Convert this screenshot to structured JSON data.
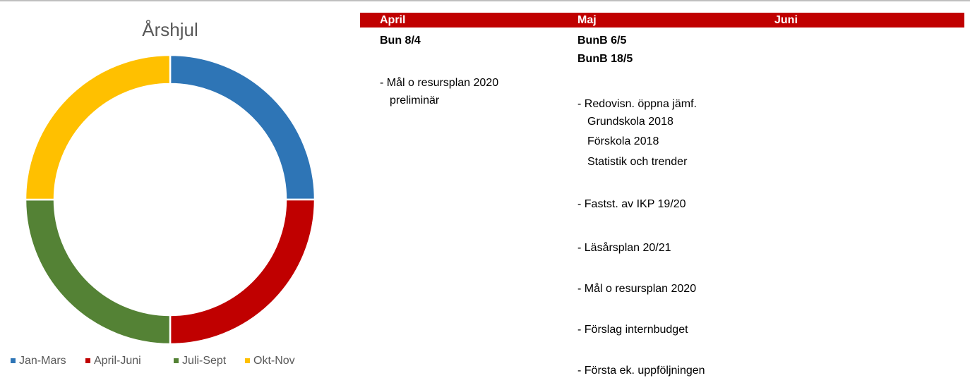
{
  "chart_data": {
    "type": "pie",
    "title": "Årshjul",
    "categories": [
      "Jan-Mars",
      "April-Juni",
      "Juli-Sept",
      "Okt-Nov"
    ],
    "values": [
      25,
      25,
      25,
      25
    ],
    "colors": [
      "#2e75b6",
      "#c00000",
      "#548235",
      "#ffc000"
    ],
    "donut": true,
    "legend": "bottom"
  },
  "table": {
    "headers": [
      "April",
      "Maj",
      "Juni"
    ],
    "april": [
      "Bun 8/4",
      "- Mål o resursplan 2020",
      "preliminär"
    ],
    "maj": [
      "BunB 6/5",
      "BunB 18/5",
      "- Redovisn. öppna jämf.",
      "Grundskola 2018",
      "Förskola 2018",
      "Statistik och trender",
      "- Fastst. av IKP 19/20",
      "- Läsårsplan 20/21",
      "- Mål o resursplan 2020",
      "- Förslag internbudget",
      "- Första ek. uppföljningen"
    ]
  }
}
